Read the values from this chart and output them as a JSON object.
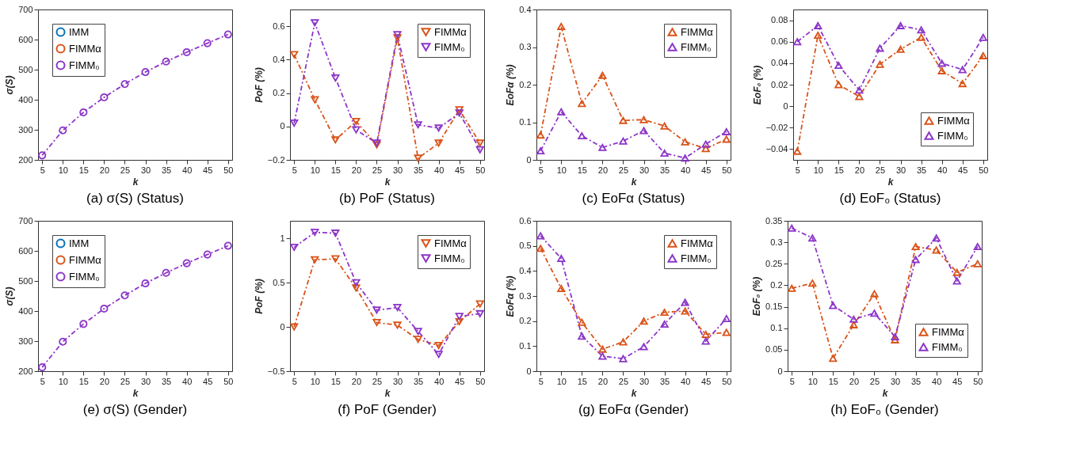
{
  "chart_data": [
    {
      "type": "line",
      "title": "(a) σ(S) (Status)",
      "xlabel": "k",
      "ylabel": "σ(S)",
      "x": [
        5,
        10,
        15,
        20,
        25,
        30,
        35,
        40,
        45,
        50
      ],
      "xlim": [
        4,
        51
      ],
      "xticks": [
        5,
        10,
        15,
        20,
        25,
        30,
        35,
        40,
        45,
        50
      ],
      "ylim": [
        200,
        700
      ],
      "yticks": [
        200,
        300,
        400,
        500,
        600,
        700
      ],
      "marker": "circle",
      "line_style": "dashed",
      "legend": "top left",
      "grid": false,
      "series": [
        {
          "name": "IMM",
          "color": "#0072bd",
          "values": [
            null,
            null,
            null,
            null,
            null,
            null,
            null,
            null,
            null,
            null
          ]
        },
        {
          "name": "FIMMα",
          "color": "#d95319",
          "values": [
            null,
            null,
            null,
            null,
            null,
            null,
            null,
            null,
            null,
            null
          ]
        },
        {
          "name": "FIMM₀",
          "color": "#8c35c8",
          "values": [
            215,
            298,
            358,
            408,
            452,
            492,
            527,
            558,
            588,
            617
          ]
        }
      ]
    },
    {
      "type": "line",
      "title": "(b) PoF (Status)",
      "xlabel": "k",
      "ylabel": "PoF (%)",
      "x": [
        5,
        10,
        15,
        20,
        25,
        30,
        35,
        40,
        45,
        50
      ],
      "xlim": [
        4,
        51
      ],
      "xticks": [
        5,
        10,
        15,
        20,
        25,
        30,
        35,
        40,
        45,
        50
      ],
      "ylim": [
        -0.2,
        0.7
      ],
      "yticks": [
        -0.2,
        0,
        0.2,
        0.4,
        0.6
      ],
      "marker": "triangle-down",
      "line_style": "dashed",
      "legend": "top right",
      "grid": false,
      "series": [
        {
          "name": "FIMMα",
          "color": "#d95319",
          "values": [
            0.43,
            0.16,
            -0.08,
            0.03,
            -0.11,
            0.53,
            -0.19,
            -0.1,
            0.1,
            -0.1
          ]
        },
        {
          "name": "FIMM₀",
          "color": "#8c35c8",
          "values": [
            0.02,
            0.62,
            0.29,
            -0.02,
            -0.1,
            0.55,
            0.01,
            -0.01,
            0.08,
            -0.14
          ]
        }
      ]
    },
    {
      "type": "line",
      "title": "(c) EoFα (Status)",
      "xlabel": "k",
      "ylabel": "EoFα (%)",
      "x": [
        5,
        10,
        15,
        20,
        25,
        30,
        35,
        40,
        45,
        50
      ],
      "xlim": [
        4,
        51
      ],
      "xticks": [
        5,
        10,
        15,
        20,
        25,
        30,
        35,
        40,
        45,
        50
      ],
      "ylim": [
        0,
        0.4
      ],
      "yticks": [
        0,
        0.1,
        0.2,
        0.3,
        0.4
      ],
      "marker": "triangle",
      "line_style": "dashed",
      "legend": "top right",
      "grid": false,
      "series": [
        {
          "name": "FIMMα",
          "color": "#d95319",
          "values": [
            0.066,
            0.355,
            0.15,
            0.225,
            0.105,
            0.107,
            0.09,
            0.048,
            0.03,
            0.055
          ]
        },
        {
          "name": "FIMM₀",
          "color": "#8c35c8",
          "values": [
            0.024,
            0.128,
            0.064,
            0.033,
            0.05,
            0.078,
            0.018,
            0.005,
            0.042,
            0.075
          ]
        }
      ]
    },
    {
      "type": "line",
      "title": "(d) EoF₀ (Status)",
      "xlabel": "k",
      "ylabel": "EoF₀ (%)",
      "x": [
        5,
        10,
        15,
        20,
        25,
        30,
        35,
        40,
        45,
        50
      ],
      "xlim": [
        4,
        51
      ],
      "xticks": [
        5,
        10,
        15,
        20,
        25,
        30,
        35,
        40,
        45,
        50
      ],
      "ylim": [
        -0.05,
        0.09
      ],
      "yticks": [
        -0.04,
        -0.02,
        0,
        0.02,
        0.04,
        0.06,
        0.08
      ],
      "marker": "triangle",
      "line_style": "dashed",
      "legend": "bottom right",
      "grid": false,
      "series": [
        {
          "name": "FIMMα",
          "color": "#d95319",
          "values": [
            -0.042,
            0.066,
            0.02,
            0.009,
            0.039,
            0.053,
            0.064,
            0.033,
            0.021,
            0.047
          ]
        },
        {
          "name": "FIMM₀",
          "color": "#8c35c8",
          "values": [
            0.06,
            0.075,
            0.038,
            0.015,
            0.054,
            0.075,
            0.071,
            0.04,
            0.034,
            0.064
          ]
        }
      ]
    },
    {
      "type": "line",
      "title": "(e) σ(S) (Gender)",
      "xlabel": "k",
      "ylabel": "σ(S)",
      "x": [
        5,
        10,
        15,
        20,
        25,
        30,
        35,
        40,
        45,
        50
      ],
      "xlim": [
        4,
        51
      ],
      "xticks": [
        5,
        10,
        15,
        20,
        25,
        30,
        35,
        40,
        45,
        50
      ],
      "ylim": [
        200,
        700
      ],
      "yticks": [
        200,
        300,
        400,
        500,
        600,
        700
      ],
      "marker": "circle",
      "line_style": "dashed",
      "legend": "top left",
      "grid": false,
      "series": [
        {
          "name": "IMM",
          "color": "#0072bd",
          "values": [
            null,
            null,
            null,
            null,
            null,
            null,
            null,
            null,
            null,
            null
          ]
        },
        {
          "name": "FIMMα",
          "color": "#d95319",
          "values": [
            null,
            null,
            null,
            null,
            null,
            null,
            null,
            null,
            null,
            null
          ]
        },
        {
          "name": "FIMM₀",
          "color": "#8c35c8",
          "values": [
            213,
            298,
            357,
            408,
            452,
            492,
            527,
            559,
            588,
            617
          ]
        }
      ]
    },
    {
      "type": "line",
      "title": "(f) PoF (Gender)",
      "xlabel": "k",
      "ylabel": "PoF (%)",
      "x": [
        5,
        10,
        15,
        20,
        25,
        30,
        35,
        40,
        45,
        50
      ],
      "xlim": [
        4,
        51
      ],
      "xticks": [
        5,
        10,
        15,
        20,
        25,
        30,
        35,
        40,
        45,
        50
      ],
      "ylim": [
        -0.5,
        1.2
      ],
      "yticks": [
        -0.5,
        0,
        0.5,
        1
      ],
      "marker": "triangle-down",
      "line_style": "dashed",
      "legend": "top right",
      "grid": false,
      "series": [
        {
          "name": "FIMMα",
          "color": "#d95319",
          "values": [
            0.0,
            0.76,
            0.77,
            0.44,
            0.05,
            0.02,
            -0.14,
            -0.21,
            0.06,
            0.26
          ]
        },
        {
          "name": "FIMM₀",
          "color": "#8c35c8",
          "values": [
            0.9,
            1.07,
            1.06,
            0.5,
            0.19,
            0.22,
            -0.05,
            -0.31,
            0.12,
            0.15
          ]
        }
      ]
    },
    {
      "type": "line",
      "title": "(g) EoFα (Gender)",
      "xlabel": "k",
      "ylabel": "EoFα (%)",
      "x": [
        5,
        10,
        15,
        20,
        25,
        30,
        35,
        40,
        45,
        50
      ],
      "xlim": [
        4,
        51
      ],
      "xticks": [
        5,
        10,
        15,
        20,
        25,
        30,
        35,
        40,
        45,
        50
      ],
      "ylim": [
        0,
        0.6
      ],
      "yticks": [
        0,
        0.1,
        0.2,
        0.3,
        0.4,
        0.5,
        0.6
      ],
      "marker": "triangle",
      "line_style": "dashed",
      "legend": "top right",
      "grid": false,
      "series": [
        {
          "name": "FIMMα",
          "color": "#d95319",
          "values": [
            0.49,
            0.33,
            0.195,
            0.088,
            0.117,
            0.2,
            0.235,
            0.24,
            0.147,
            0.155
          ]
        },
        {
          "name": "FIMM₀",
          "color": "#8c35c8",
          "values": [
            0.54,
            0.45,
            0.14,
            0.06,
            0.05,
            0.098,
            0.188,
            0.275,
            0.12,
            0.21
          ]
        }
      ]
    },
    {
      "type": "line",
      "title": "(h) EoF₀ (Gender)",
      "xlabel": "k",
      "ylabel": "EoF₀ (%)",
      "x": [
        5,
        10,
        15,
        20,
        25,
        30,
        35,
        40,
        45,
        50
      ],
      "xlim": [
        4,
        51
      ],
      "xticks": [
        5,
        10,
        15,
        20,
        25,
        30,
        35,
        40,
        45,
        50
      ],
      "ylim": [
        0,
        0.35
      ],
      "yticks": [
        0,
        0.05,
        0.1,
        0.15,
        0.2,
        0.25,
        0.3,
        0.35
      ],
      "marker": "triangle",
      "line_style": "dashed",
      "legend": "bottom right",
      "grid": false,
      "series": [
        {
          "name": "FIMMα",
          "color": "#d95319",
          "values": [
            0.193,
            0.205,
            0.03,
            0.108,
            0.18,
            0.073,
            0.29,
            0.282,
            0.23,
            0.25
          ]
        },
        {
          "name": "FIMM₀",
          "color": "#8c35c8",
          "values": [
            0.333,
            0.31,
            0.153,
            0.121,
            0.135,
            0.08,
            0.26,
            0.31,
            0.21,
            0.29
          ]
        }
      ]
    }
  ]
}
